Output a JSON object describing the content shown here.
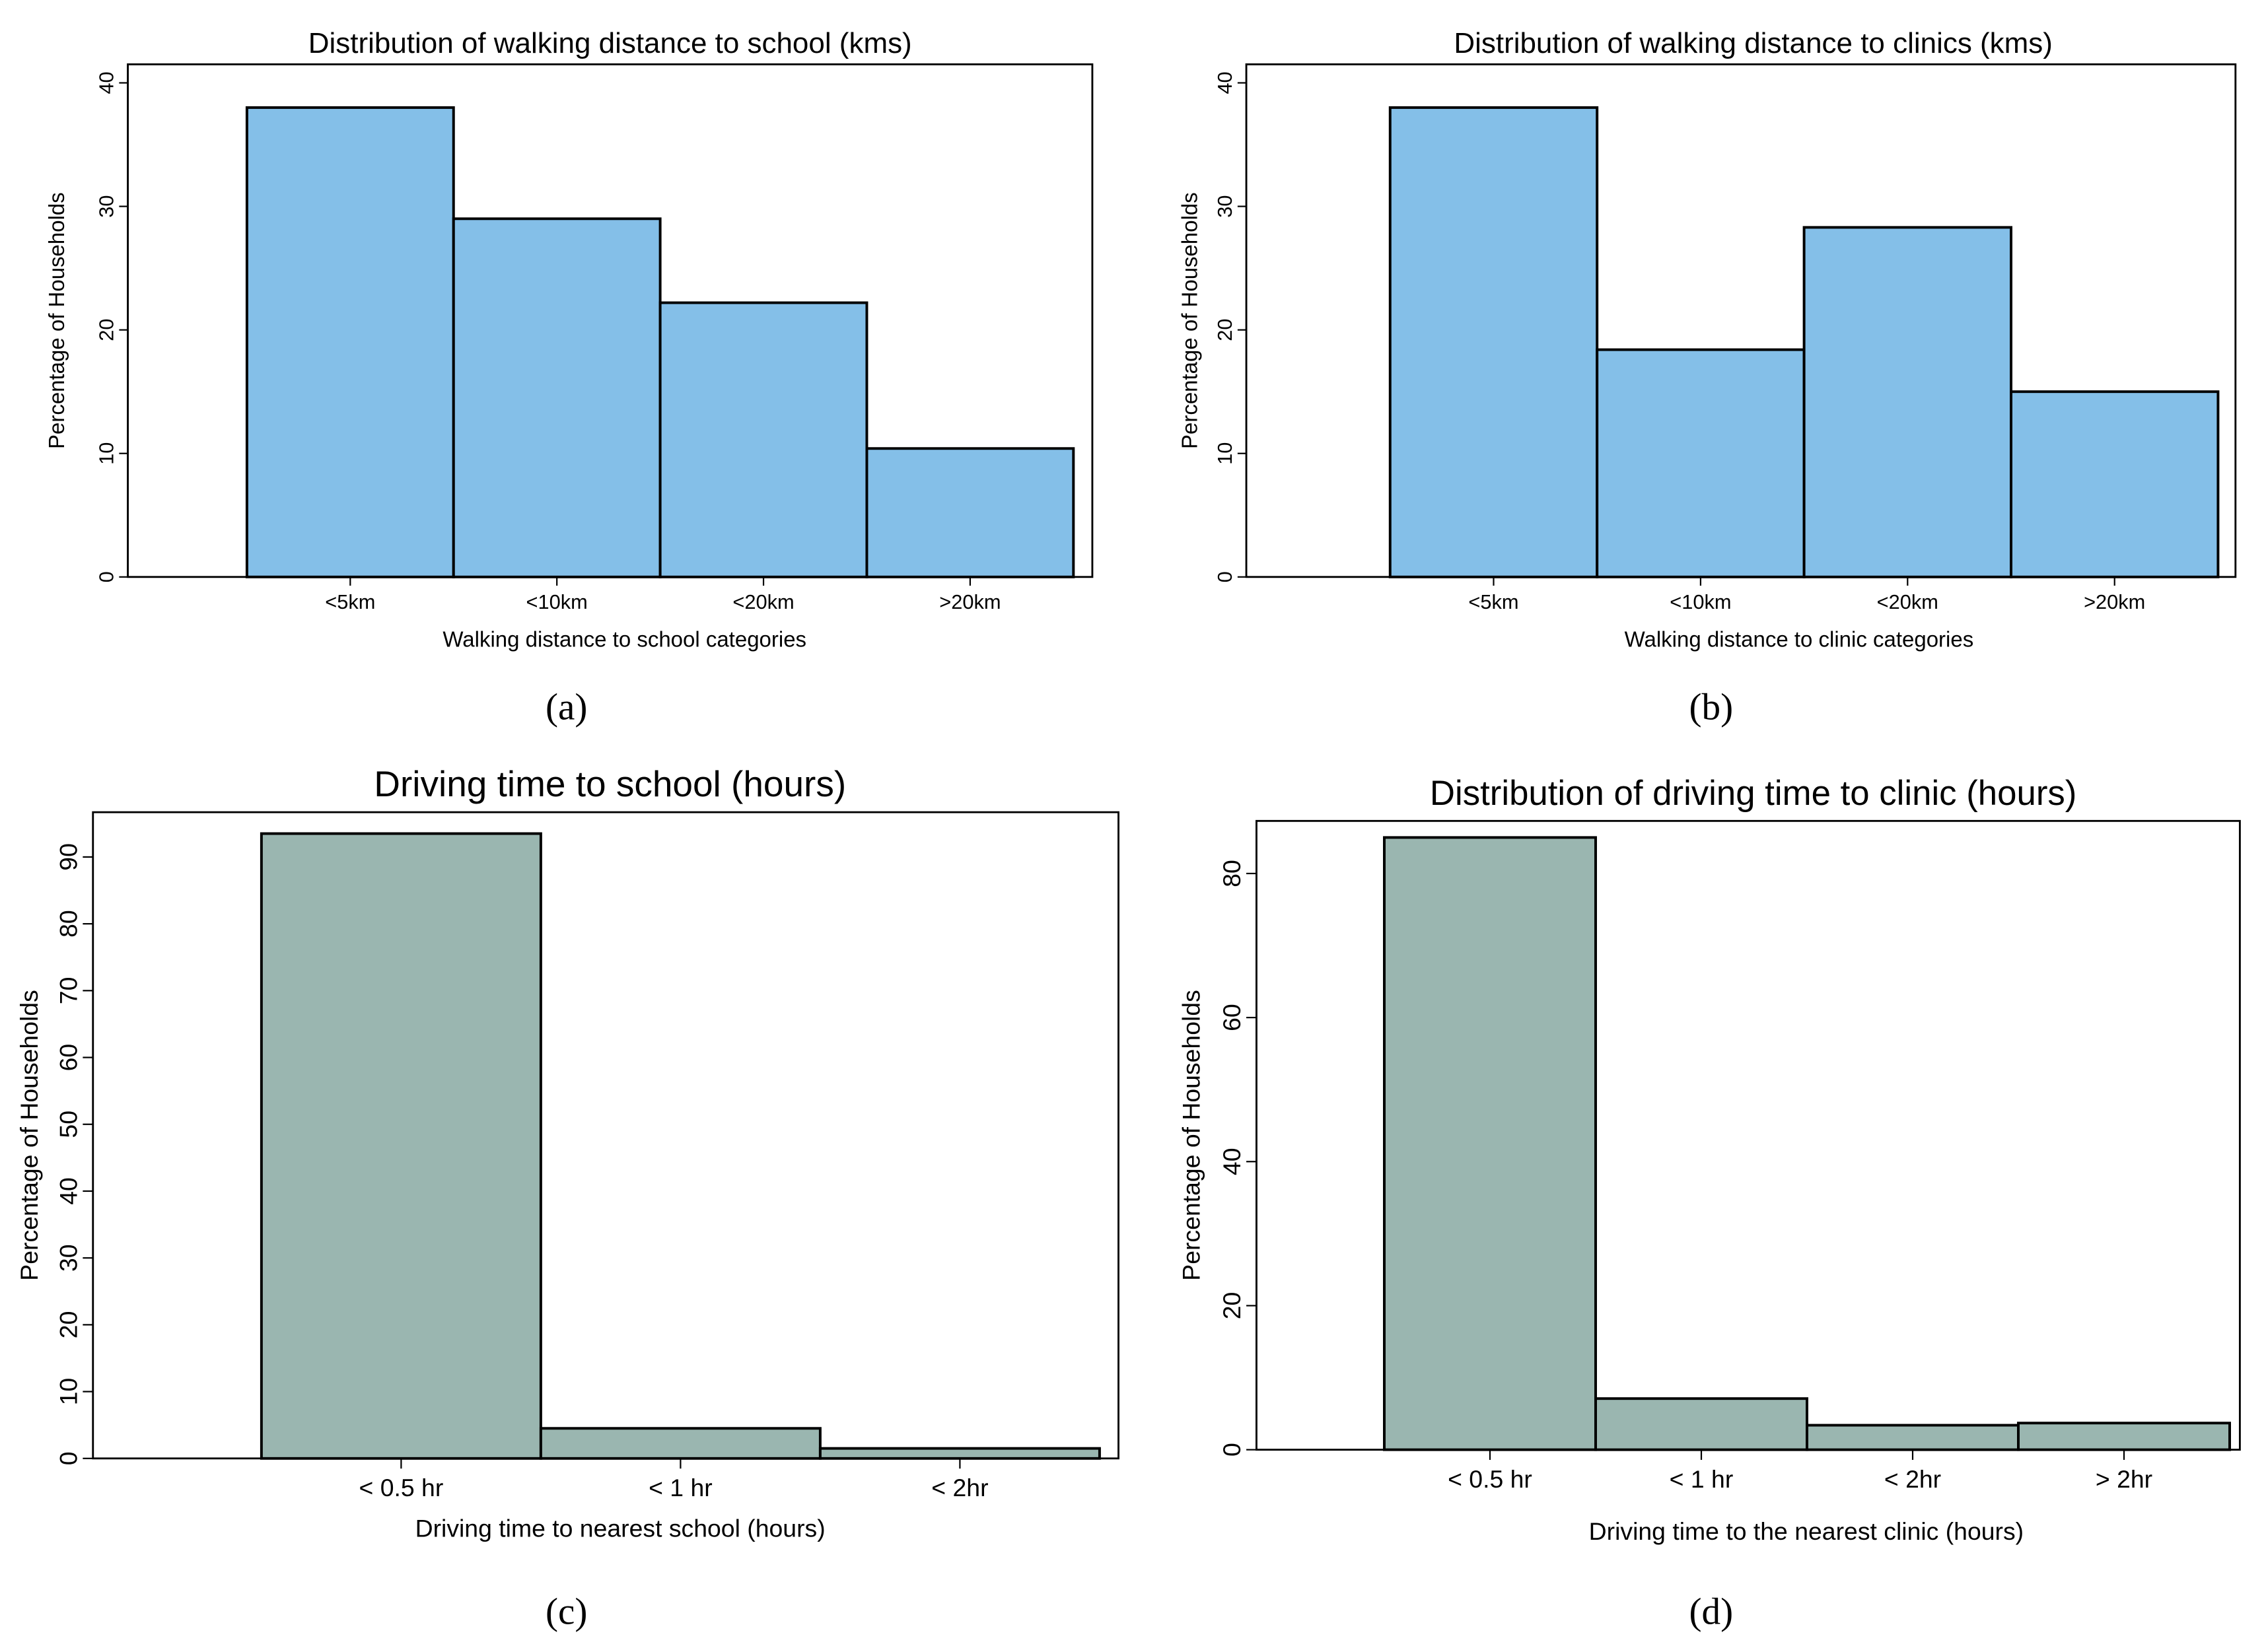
{
  "chart_data": [
    {
      "type": "bar",
      "panel": "(a)",
      "title": "Distribution of walking distance to school (kms)",
      "xlabel": "Walking distance to school categories",
      "ylabel": "Percentage of Households",
      "categories": [
        "<5km",
        "<10km",
        "<20km",
        ">20km"
      ],
      "values": [
        38,
        29,
        22.2,
        10.4
      ],
      "yticks": [
        0,
        10,
        20,
        30,
        40
      ],
      "ylim": [
        0,
        41.5
      ],
      "color": "#84bfe8",
      "grid": false
    },
    {
      "type": "bar",
      "panel": "(b)",
      "title": "Distribution of walking distance to clinics (kms)",
      "xlabel": "Walking distance to clinic categories",
      "ylabel": "Percentage of Households",
      "categories": [
        "<5km",
        "<10km",
        "<20km",
        ">20km"
      ],
      "values": [
        38,
        18.4,
        28.3,
        15
      ],
      "yticks": [
        0,
        10,
        20,
        30,
        40
      ],
      "ylim": [
        0,
        41.5
      ],
      "color": "#84bfe8",
      "grid": false
    },
    {
      "type": "bar",
      "panel": "(c)",
      "title": "Driving time to school (hours)",
      "xlabel": "Driving time to nearest school (hours)",
      "ylabel": "Percentage of Households",
      "categories": [
        "< 0.5 hr",
        "< 1 hr",
        "< 2hr"
      ],
      "values": [
        93.5,
        4.5,
        1.5
      ],
      "yticks": [
        0,
        10,
        20,
        30,
        40,
        50,
        60,
        70,
        80,
        90
      ],
      "ylim": [
        0,
        96.7
      ],
      "color": "#9ab6b0",
      "grid": false
    },
    {
      "type": "bar",
      "panel": "(d)",
      "title": "Distribution of driving time to clinic (hours)",
      "xlabel": "Driving time to the nearest clinic (hours)",
      "ylabel": "Percentage of Households",
      "categories": [
        "< 0.5 hr",
        "< 1 hr",
        "< 2hr",
        "> 2hr"
      ],
      "values": [
        85,
        7.1,
        3.4,
        3.7
      ],
      "yticks": [
        0,
        20,
        40,
        60,
        80
      ],
      "ylim": [
        0,
        87.3
      ],
      "color": "#9ab6b0",
      "grid": false
    }
  ]
}
